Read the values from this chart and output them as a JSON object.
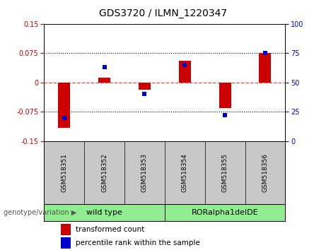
{
  "title": "GDS3720 / ILMN_1220347",
  "samples": [
    "GSM518351",
    "GSM518352",
    "GSM518353",
    "GSM518354",
    "GSM518355",
    "GSM518356"
  ],
  "transformed_counts": [
    -0.115,
    0.012,
    -0.018,
    0.055,
    -0.065,
    0.075
  ],
  "percentile_ranks": [
    20,
    63,
    40,
    65,
    22,
    75
  ],
  "ylim_left": [
    -0.15,
    0.15
  ],
  "ylim_right": [
    0,
    100
  ],
  "yticks_left": [
    -0.15,
    -0.075,
    0,
    0.075,
    0.15
  ],
  "yticks_right": [
    0,
    25,
    50,
    75,
    100
  ],
  "bar_color_red": "#CC0000",
  "dot_color_blue": "#0000CC",
  "hline_color": "#FF4444",
  "background_label": "#C8C8C8",
  "background_geno": "#90EE90",
  "wild_type_label": "wild type",
  "mutant_label": "RORalpha1delDE",
  "legend_red_label": "transformed count",
  "legend_blue_label": "percentile rank within the sample",
  "genotype_label": "genotype/variation"
}
